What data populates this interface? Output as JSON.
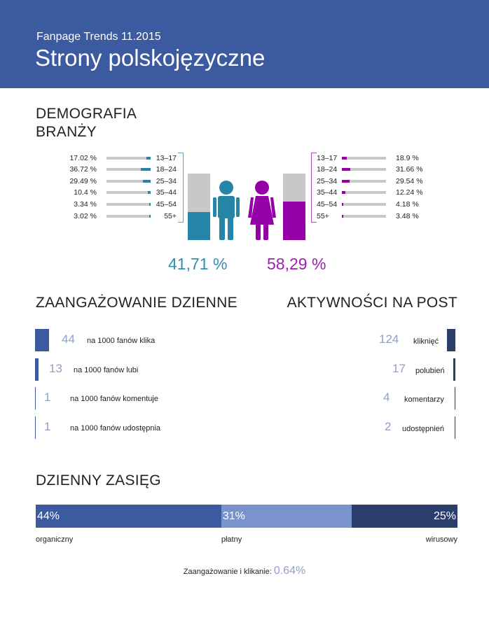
{
  "header": {
    "subtitle": "Fanpage Trends 11.2015",
    "title": "Strony polskojęzyczne"
  },
  "colors": {
    "header": "#3b5aa0",
    "male": "#2585a8",
    "female": "#9400a6",
    "organic": "#3b5aa0",
    "paid": "#7b93cc",
    "viral": "#2b3d6b"
  },
  "demographics": {
    "title_line1": "DEMOGRAFIA",
    "title_line2": "BRANŻY",
    "male": {
      "total_label": "41,71 %",
      "total": 41.71,
      "rows": [
        {
          "age": "13–17",
          "pct": 17.02,
          "label": "17.02 %"
        },
        {
          "age": "18–24",
          "pct": 36.72,
          "label": "36.72 %"
        },
        {
          "age": "25–34",
          "pct": 29.49,
          "label": "29.49 %"
        },
        {
          "age": "35–44",
          "pct": 10.4,
          "label": "10.4 %"
        },
        {
          "age": "45–54",
          "pct": 3.34,
          "label": "3.34 %"
        },
        {
          "age": "55+",
          "pct": 3.02,
          "label": "3.02 %"
        }
      ]
    },
    "female": {
      "total_label": "58,29 %",
      "total": 58.29,
      "rows": [
        {
          "age": "13–17",
          "pct": 18.9,
          "label": "18.9 %"
        },
        {
          "age": "18–24",
          "pct": 31.66,
          "label": "31.66 %"
        },
        {
          "age": "25–34",
          "pct": 29.54,
          "label": "29.54 %"
        },
        {
          "age": "35–44",
          "pct": 12.24,
          "label": "12.24 %"
        },
        {
          "age": "45–54",
          "pct": 4.18,
          "label": "4.18 %"
        },
        {
          "age": "55+",
          "pct": 3.48,
          "label": "3.48 %"
        }
      ]
    }
  },
  "engagement": {
    "title": "ZAANGAŻOWANIE DZIENNE",
    "rows": [
      {
        "value": "44",
        "text": "na 1000 fanów klika"
      },
      {
        "value": "13",
        "text": "na 1000 fanów lubi"
      },
      {
        "value": "1",
        "text": "na 1000 fanów komentuje"
      },
      {
        "value": "1",
        "text": "na 1000 fanów udostępnia"
      }
    ]
  },
  "activity": {
    "title": "AKTYWNOŚCI NA POST",
    "rows": [
      {
        "value": "124",
        "text": "kliknięć"
      },
      {
        "value": "17",
        "text": "polubień"
      },
      {
        "value": "4",
        "text": "komentarzy"
      },
      {
        "value": "2",
        "text": "udostępnień"
      }
    ]
  },
  "reach": {
    "title": "DZIENNY ZASIĘG",
    "segments": [
      {
        "pct": 44,
        "label": "44%",
        "name": "organiczny"
      },
      {
        "pct": 31,
        "label": "31%",
        "name": "płatny"
      },
      {
        "pct": 25,
        "label": "25%",
        "name": "wirusowy"
      }
    ],
    "footer_label": "Zaangażowanie i klikanie:",
    "footer_value": "0.64%"
  },
  "chart_data": {
    "type": "bar",
    "title": "DEMOGRAFIA BRANŻY",
    "categories": [
      "13–17",
      "18–24",
      "25–34",
      "35–44",
      "45–54",
      "55+"
    ],
    "series": [
      {
        "name": "male",
        "values": [
          17.02,
          36.72,
          29.49,
          10.4,
          3.34,
          3.02
        ]
      },
      {
        "name": "female",
        "values": [
          18.9,
          31.66,
          29.54,
          12.24,
          4.18,
          3.48
        ]
      }
    ]
  }
}
